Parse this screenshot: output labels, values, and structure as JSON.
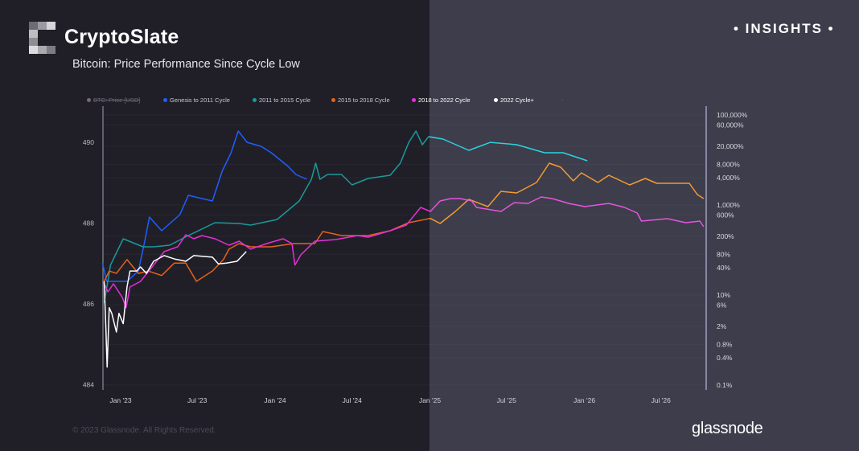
{
  "header": {
    "brand": "CryptoSlate",
    "subtitle": "Bitcoin: Price Performance Since Cycle Low",
    "badge": "• INSIGHTS •"
  },
  "footer": {
    "copyright": "© 2023 Glassnode. All Rights Reserved.",
    "watermark": "glassnode"
  },
  "colors": {
    "background_left": "#201f28",
    "background_right": "#3e3d4b"
  },
  "chart_data": {
    "type": "line",
    "title": "Bitcoin: Price Performance Since Cycle Low",
    "legend_position": "top",
    "legend": [
      {
        "name": "BTC: Price [USD]",
        "color": "#7a6a70",
        "hidden": true
      },
      {
        "name": "Genesis to 2011 Cycle",
        "color": "#1f5fff"
      },
      {
        "name": "2011 to 2015 Cycle",
        "color": "#1a9a9a"
      },
      {
        "name": "2015 to 2018 Cycle",
        "color": "#e8611a"
      },
      {
        "name": "2018 to 2022 Cycle",
        "color": "#e62fd8"
      },
      {
        "name": "2022 Cycle+",
        "color": "#ffffff"
      },
      {
        "name": "-",
        "color": "#6a6a75"
      }
    ],
    "x_ticks": [
      {
        "label": "Jan '23",
        "date": "2023-01-01"
      },
      {
        "label": "Jul '23",
        "date": "2023-07-01"
      },
      {
        "label": "Jan '24",
        "date": "2024-01-01"
      },
      {
        "label": "Jul '24",
        "date": "2024-07-01"
      },
      {
        "label": "Jan '25",
        "date": "2025-01-01"
      },
      {
        "label": "Jul '25",
        "date": "2025-07-01"
      },
      {
        "label": "Jan '26",
        "date": "2026-01-01"
      },
      {
        "label": "Jul '26",
        "date": "2026-07-01"
      }
    ],
    "y_left_ticks": [
      490,
      488,
      486,
      484
    ],
    "y_right_scale": "log",
    "y_right_ticks": [
      {
        "label": "100,000%",
        "value": 100000
      },
      {
        "label": "60,000%",
        "value": 60000
      },
      {
        "label": "20,000%",
        "value": 20000
      },
      {
        "label": "8,000%",
        "value": 8000
      },
      {
        "label": "4,000%",
        "value": 4000
      },
      {
        "label": "1,000%",
        "value": 1000
      },
      {
        "label": "600%",
        "value": 600
      },
      {
        "label": "200%",
        "value": 200
      },
      {
        "label": "80%",
        "value": 80
      },
      {
        "label": "40%",
        "value": 40
      },
      {
        "label": "10%",
        "value": 10
      },
      {
        "label": "6%",
        "value": 6
      },
      {
        "label": "2%",
        "value": 2
      },
      {
        "label": "0.8%",
        "value": 0.8
      },
      {
        "label": "0.4%",
        "value": 0.4
      },
      {
        "label": "0.1%",
        "value": 0.1
      }
    ],
    "series": [
      {
        "name": "Genesis to 2011 Cycle",
        "color": "#1f5fff",
        "color_right": "#3a78ff",
        "points": [
          [
            "2022-11-19",
            51.5
          ],
          [
            "2022-11-29",
            20
          ],
          [
            "2022-12-22",
            20
          ],
          [
            "2023-01-16",
            20
          ],
          [
            "2023-02-12",
            34
          ],
          [
            "2023-02-27",
            156
          ],
          [
            "2023-03-10",
            537
          ],
          [
            "2023-04-08",
            267
          ],
          [
            "2023-05-21",
            607
          ],
          [
            "2023-06-10",
            1630
          ],
          [
            "2023-08-06",
            1220
          ],
          [
            "2023-08-29",
            5590
          ],
          [
            "2023-09-19",
            14400
          ],
          [
            "2023-10-06",
            43700
          ],
          [
            "2023-10-27",
            24500
          ],
          [
            "2023-11-29",
            20000
          ],
          [
            "2023-12-23",
            14400
          ],
          [
            "2024-02-01",
            7160
          ],
          [
            "2024-02-19",
            4740
          ],
          [
            "2024-03-16",
            3710
          ]
        ]
      },
      {
        "name": "2011 to 2015 Cycle",
        "color": "#1a9a9a",
        "color_right": "#2ad4dc",
        "points": [
          [
            "2022-11-23",
            6.6
          ],
          [
            "2022-12-08",
            46
          ],
          [
            "2023-01-07",
            177
          ],
          [
            "2023-02-04",
            138
          ],
          [
            "2023-02-23",
            117
          ],
          [
            "2023-03-20",
            117
          ],
          [
            "2023-04-27",
            127
          ],
          [
            "2023-06-10",
            208
          ],
          [
            "2023-08-12",
            403
          ],
          [
            "2023-10-08",
            386
          ],
          [
            "2023-11-04",
            356
          ],
          [
            "2024-01-06",
            474
          ],
          [
            "2024-02-27",
            1220
          ],
          [
            "2024-03-27",
            3710
          ],
          [
            "2024-04-06",
            8430
          ],
          [
            "2024-04-16",
            3710
          ],
          [
            "2024-05-04",
            4740
          ],
          [
            "2024-06-06",
            4740
          ],
          [
            "2024-07-01",
            2780
          ],
          [
            "2024-08-08",
            3860
          ],
          [
            "2024-09-29",
            4550
          ],
          [
            "2024-10-23",
            8430
          ],
          [
            "2024-11-12",
            24500
          ],
          [
            "2024-11-29",
            43700
          ],
          [
            "2024-12-14",
            21700
          ],
          [
            "2024-12-29",
            32700
          ],
          [
            "2025-02-01",
            29000
          ],
          [
            "2025-04-03",
            16300
          ],
          [
            "2025-05-24",
            24500
          ],
          [
            "2025-07-25",
            21700
          ],
          [
            "2025-09-29",
            14400
          ],
          [
            "2025-11-12",
            14400
          ],
          [
            "2026-01-08",
            9540
          ]
        ]
      },
      {
        "name": "2015 to 2018 Cycle",
        "color": "#e8611a",
        "color_right": "#f39a34",
        "points": [
          [
            "2022-11-23",
            20
          ],
          [
            "2022-12-05",
            34
          ],
          [
            "2022-12-22",
            30
          ],
          [
            "2023-01-16",
            61
          ],
          [
            "2023-02-12",
            30
          ],
          [
            "2023-03-07",
            34
          ],
          [
            "2023-04-08",
            27
          ],
          [
            "2023-05-08",
            51
          ],
          [
            "2023-06-04",
            51
          ],
          [
            "2023-06-29",
            20
          ],
          [
            "2023-08-06",
            34
          ],
          [
            "2023-09-01",
            61
          ],
          [
            "2023-09-14",
            104
          ],
          [
            "2023-10-08",
            138
          ],
          [
            "2023-11-04",
            117
          ],
          [
            "2023-12-23",
            117
          ],
          [
            "2024-02-14",
            138
          ],
          [
            "2024-04-04",
            138
          ],
          [
            "2024-04-23",
            256
          ],
          [
            "2024-06-06",
            208
          ],
          [
            "2024-08-08",
            208
          ],
          [
            "2024-09-29",
            267
          ],
          [
            "2024-11-12",
            403
          ],
          [
            "2025-01-02",
            500
          ],
          [
            "2025-01-25",
            386
          ],
          [
            "2025-03-02",
            716
          ],
          [
            "2025-04-03",
            1330
          ],
          [
            "2025-05-18",
            916
          ],
          [
            "2025-06-18",
            2000
          ],
          [
            "2025-07-25",
            1840
          ],
          [
            "2025-09-10",
            3140
          ],
          [
            "2025-10-10",
            8430
          ],
          [
            "2025-11-06",
            6870
          ],
          [
            "2025-12-06",
            3410
          ],
          [
            "2025-12-25",
            5150
          ],
          [
            "2026-02-02",
            3140
          ],
          [
            "2026-02-28",
            4550
          ],
          [
            "2026-04-18",
            2780
          ],
          [
            "2026-05-25",
            3860
          ],
          [
            "2026-06-21",
            3020
          ],
          [
            "2026-09-06",
            3020
          ],
          [
            "2026-09-25",
            1700
          ],
          [
            "2026-10-10",
            1380
          ]
        ]
      },
      {
        "name": "2018 to 2022 Cycle",
        "color": "#e62fd8",
        "color_right": "#e455e0",
        "points": [
          [
            "2022-11-23",
            17.7
          ],
          [
            "2022-12-02",
            11.7
          ],
          [
            "2022-12-15",
            17.7
          ],
          [
            "2023-01-05",
            8.8
          ],
          [
            "2023-01-14",
            5.2
          ],
          [
            "2023-01-23",
            15
          ],
          [
            "2023-02-17",
            20
          ],
          [
            "2023-03-20",
            46
          ],
          [
            "2023-04-14",
            92
          ],
          [
            "2023-05-16",
            117
          ],
          [
            "2023-06-04",
            217
          ],
          [
            "2023-06-23",
            177
          ],
          [
            "2023-07-12",
            208
          ],
          [
            "2023-08-12",
            177
          ],
          [
            "2023-09-14",
            127
          ],
          [
            "2023-10-08",
            156
          ],
          [
            "2023-11-04",
            104
          ],
          [
            "2023-12-12",
            138
          ],
          [
            "2024-01-20",
            177
          ],
          [
            "2024-02-10",
            138
          ],
          [
            "2024-02-17",
            46
          ],
          [
            "2024-03-02",
            78
          ],
          [
            "2024-04-04",
            156
          ],
          [
            "2024-05-23",
            170
          ],
          [
            "2024-07-14",
            208
          ],
          [
            "2024-08-08",
            192
          ],
          [
            "2024-09-29",
            267
          ],
          [
            "2024-11-06",
            356
          ],
          [
            "2024-12-10",
            880
          ],
          [
            "2025-01-02",
            716
          ],
          [
            "2025-01-25",
            1220
          ],
          [
            "2025-02-19",
            1380
          ],
          [
            "2025-03-14",
            1380
          ],
          [
            "2025-04-10",
            1220
          ],
          [
            "2025-04-21",
            880
          ],
          [
            "2025-06-18",
            716
          ],
          [
            "2025-07-19",
            1120
          ],
          [
            "2025-08-21",
            1080
          ],
          [
            "2025-09-21",
            1500
          ],
          [
            "2025-10-17",
            1380
          ],
          [
            "2025-11-25",
            1080
          ],
          [
            "2026-01-02",
            916
          ],
          [
            "2026-02-28",
            1080
          ],
          [
            "2026-04-06",
            880
          ],
          [
            "2026-05-06",
            660
          ],
          [
            "2026-05-16",
            437
          ],
          [
            "2026-07-16",
            494
          ],
          [
            "2026-08-29",
            403
          ],
          [
            "2026-10-01",
            437
          ],
          [
            "2026-10-10",
            327
          ]
        ]
      },
      {
        "name": "2022 Cycle+",
        "color": "#ffffff",
        "color_right": "#ffffff",
        "points": [
          [
            "2022-11-23",
            20
          ],
          [
            "2022-11-27",
            1.9
          ],
          [
            "2022-11-30",
            0.25
          ],
          [
            "2022-12-05",
            5.2
          ],
          [
            "2022-12-11",
            3.9
          ],
          [
            "2022-12-22",
            1.5
          ],
          [
            "2022-12-28",
            3.9
          ],
          [
            "2023-01-07",
            2.3
          ],
          [
            "2023-01-16",
            15
          ],
          [
            "2023-01-23",
            34
          ],
          [
            "2023-02-08",
            34
          ],
          [
            "2023-02-17",
            42
          ],
          [
            "2023-03-03",
            30
          ],
          [
            "2023-03-20",
            56
          ],
          [
            "2023-04-14",
            75
          ],
          [
            "2023-05-08",
            63
          ],
          [
            "2023-06-04",
            56
          ],
          [
            "2023-06-23",
            75
          ],
          [
            "2023-08-06",
            69
          ],
          [
            "2023-08-20",
            49
          ],
          [
            "2023-09-08",
            51
          ],
          [
            "2023-10-03",
            56
          ],
          [
            "2023-10-25",
            92
          ]
        ]
      }
    ]
  }
}
